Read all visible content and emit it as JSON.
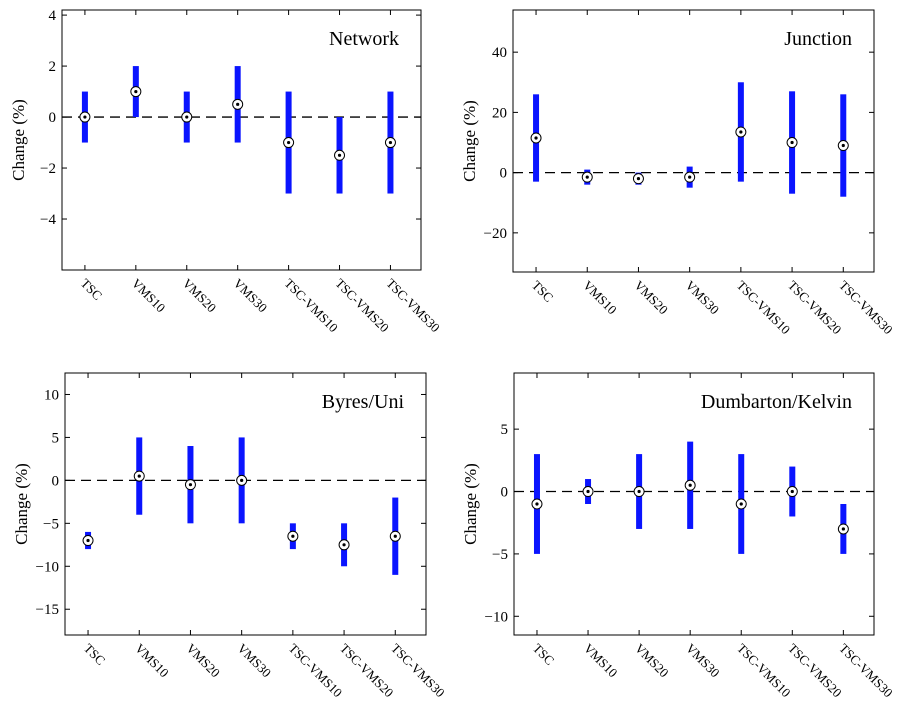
{
  "chart_data": [
    {
      "type": "errorbar",
      "title": "Network",
      "xlabel": "",
      "ylabel": "Change (%)",
      "categories": [
        "TSC",
        "VMS10",
        "VMS20",
        "VMS30",
        "TSC-VMS10",
        "TSC-VMS20",
        "TSC-VMS30"
      ],
      "values": [
        0,
        1,
        0,
        0.5,
        -1,
        -1.5,
        -1
      ],
      "lower": [
        -1,
        0,
        -1,
        -1,
        -3,
        -3,
        -3
      ],
      "upper": [
        1,
        2,
        1,
        2,
        1,
        0,
        1
      ],
      "ylim": [
        -6,
        4.2
      ],
      "yticks": [
        -4,
        -2,
        0,
        2,
        4
      ],
      "ytick_labels": [
        "−4",
        "−2",
        "0",
        "2",
        "4"
      ],
      "reference_line": 0,
      "title_position": "top-right"
    },
    {
      "type": "errorbar",
      "title": "Junction",
      "xlabel": "",
      "ylabel": "Change (%)",
      "categories": [
        "TSC",
        "VMS10",
        "VMS20",
        "VMS30",
        "TSC-VMS10",
        "TSC-VMS20",
        "TSC-VMS30"
      ],
      "values": [
        11.5,
        -1.5,
        -2,
        -1.5,
        13.5,
        10,
        9
      ],
      "lower": [
        -3,
        -4,
        -4,
        -5,
        -3,
        -7,
        -8
      ],
      "upper": [
        26,
        1,
        0,
        2,
        30,
        27,
        26
      ],
      "ylim": [
        -33,
        54
      ],
      "yticks": [
        -20,
        0,
        20,
        40
      ],
      "ytick_labels": [
        "−20",
        "0",
        "20",
        "40"
      ],
      "reference_line": 0,
      "title_position": "top-right"
    },
    {
      "type": "errorbar",
      "title": "Byres/Uni",
      "xlabel": "",
      "ylabel": "Change (%)",
      "categories": [
        "TSC",
        "VMS10",
        "VMS20",
        "VMS30",
        "TSC-VMS10",
        "TSC-VMS20",
        "TSC-VMS30"
      ],
      "values": [
        -7,
        0.5,
        -0.5,
        0,
        -6.5,
        -7.5,
        -6.5
      ],
      "lower": [
        -8,
        -4,
        -5,
        -5,
        -8,
        -10,
        -11
      ],
      "upper": [
        -6,
        5,
        4,
        5,
        -5,
        -5,
        -2
      ],
      "ylim": [
        -18,
        12.5
      ],
      "yticks": [
        -15,
        -10,
        -5,
        0,
        5,
        10
      ],
      "ytick_labels": [
        "−15",
        "−10",
        "−5",
        "0",
        "5",
        "10"
      ],
      "reference_line": 0,
      "title_position": "top-right"
    },
    {
      "type": "errorbar",
      "title": "Dumbarton/Kelvin",
      "xlabel": "",
      "ylabel": "Change (%)",
      "categories": [
        "TSC",
        "VMS10",
        "VMS20",
        "VMS30",
        "TSC-VMS10",
        "TSC-VMS20",
        "TSC-VMS30"
      ],
      "values": [
        -1,
        0,
        0,
        0.5,
        -1,
        0,
        -3
      ],
      "lower": [
        -5,
        -1,
        -3,
        -3,
        -5,
        -2,
        -5
      ],
      "upper": [
        3,
        1,
        3,
        4,
        3,
        2,
        -1
      ],
      "ylim": [
        -11.5,
        9.5
      ],
      "yticks": [
        -10,
        -5,
        0,
        5
      ],
      "ytick_labels": [
        "−10",
        "−5",
        "0",
        "5"
      ],
      "reference_line": 0,
      "title_position": "top-right"
    }
  ],
  "colors": {
    "bar": "#0a14ff",
    "marker_fill": "#ffffff",
    "marker_stroke": "#000000",
    "reference_line": "#000000",
    "axis": "#000000"
  }
}
